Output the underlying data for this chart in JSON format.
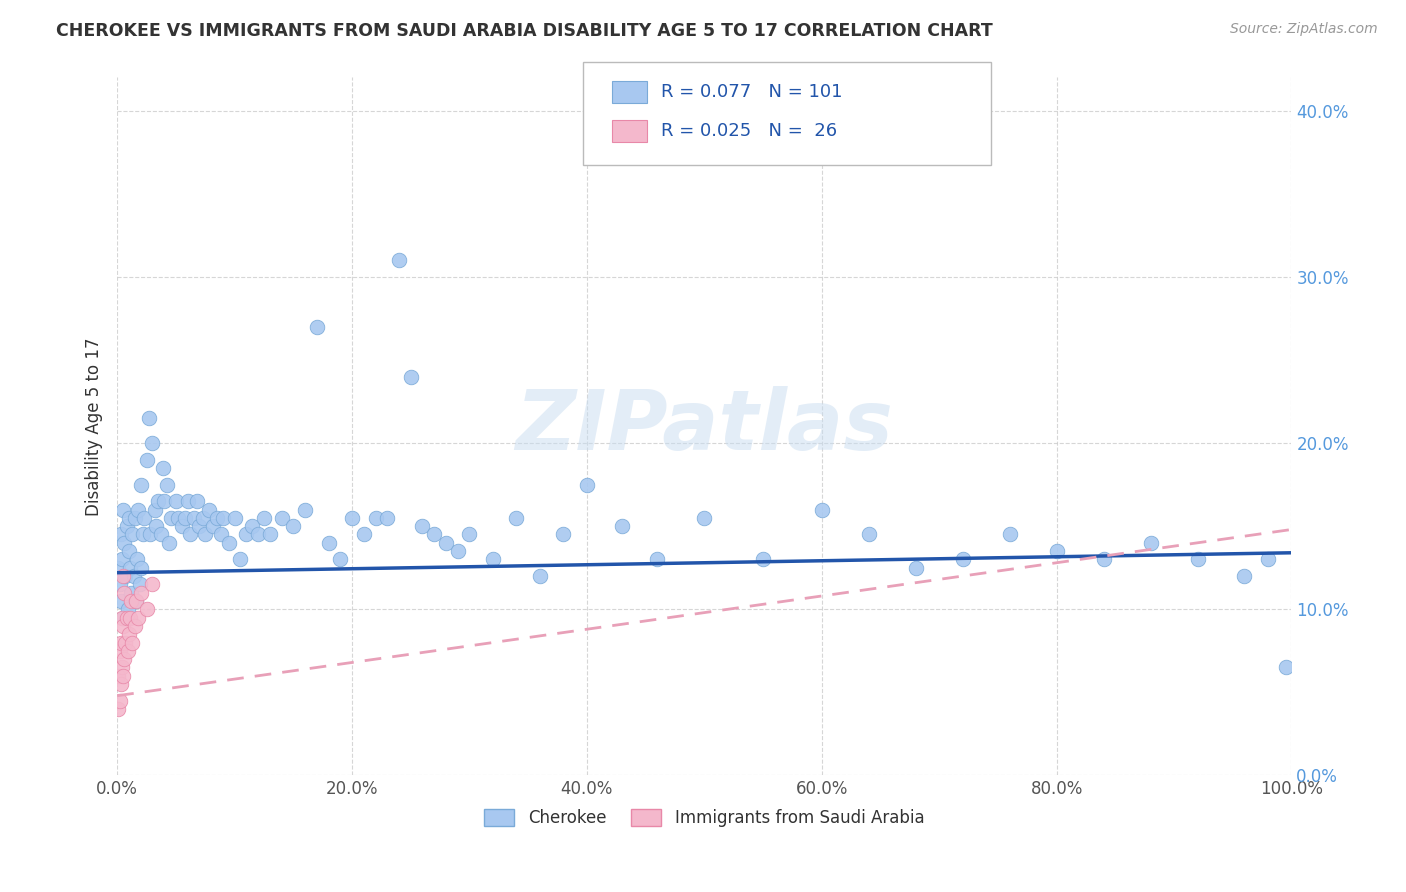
{
  "title": "CHEROKEE VS IMMIGRANTS FROM SAUDI ARABIA DISABILITY AGE 5 TO 17 CORRELATION CHART",
  "source": "Source: ZipAtlas.com",
  "ylabel": "Disability Age 5 to 17",
  "xlim": [
    0.0,
    1.0
  ],
  "ylim": [
    0.0,
    0.42
  ],
  "xticks": [
    0.0,
    0.2,
    0.4,
    0.6,
    0.8,
    1.0
  ],
  "xticklabels": [
    "0.0%",
    "20.0%",
    "40.0%",
    "60.0%",
    "80.0%",
    "100.0%"
  ],
  "yticks": [
    0.0,
    0.1,
    0.2,
    0.3,
    0.4
  ],
  "yticklabels": [
    "0.0%",
    "10.0%",
    "20.0%",
    "30.0%",
    "40.0%"
  ],
  "cherokee_color": "#A8C8F0",
  "saudi_color": "#F4B8CC",
  "cherokee_edge": "#7AAAD8",
  "saudi_edge": "#E888A8",
  "trend_cherokee_color": "#2255AA",
  "trend_saudi_color": "#E8A0B8",
  "legend_cherokee_label": "Cherokee",
  "legend_saudi_label": "Immigrants from Saudi Arabia",
  "R_cherokee": 0.077,
  "N_cherokee": 101,
  "R_saudi": 0.025,
  "N_saudi": 26,
  "watermark": "ZIPatlas",
  "tick_color_y": "#5599DD",
  "tick_color_x": "#555555",
  "cherokee_x": [
    0.001,
    0.002,
    0.003,
    0.003,
    0.004,
    0.005,
    0.005,
    0.006,
    0.007,
    0.008,
    0.009,
    0.01,
    0.01,
    0.011,
    0.012,
    0.013,
    0.014,
    0.015,
    0.016,
    0.017,
    0.018,
    0.019,
    0.02,
    0.02,
    0.022,
    0.023,
    0.025,
    0.027,
    0.028,
    0.03,
    0.032,
    0.033,
    0.035,
    0.037,
    0.039,
    0.04,
    0.042,
    0.044,
    0.046,
    0.05,
    0.052,
    0.055,
    0.058,
    0.06,
    0.062,
    0.065,
    0.068,
    0.07,
    0.073,
    0.075,
    0.078,
    0.082,
    0.085,
    0.088,
    0.09,
    0.095,
    0.1,
    0.105,
    0.11,
    0.115,
    0.12,
    0.125,
    0.13,
    0.14,
    0.15,
    0.16,
    0.17,
    0.18,
    0.19,
    0.2,
    0.21,
    0.22,
    0.23,
    0.24,
    0.25,
    0.26,
    0.27,
    0.28,
    0.29,
    0.3,
    0.32,
    0.34,
    0.36,
    0.38,
    0.4,
    0.43,
    0.46,
    0.5,
    0.55,
    0.6,
    0.64,
    0.68,
    0.72,
    0.76,
    0.8,
    0.84,
    0.88,
    0.92,
    0.96,
    0.98,
    0.995
  ],
  "cherokee_y": [
    0.125,
    0.115,
    0.105,
    0.145,
    0.13,
    0.095,
    0.16,
    0.14,
    0.12,
    0.15,
    0.1,
    0.135,
    0.155,
    0.125,
    0.11,
    0.145,
    0.12,
    0.155,
    0.105,
    0.13,
    0.16,
    0.115,
    0.125,
    0.175,
    0.145,
    0.155,
    0.19,
    0.215,
    0.145,
    0.2,
    0.16,
    0.15,
    0.165,
    0.145,
    0.185,
    0.165,
    0.175,
    0.14,
    0.155,
    0.165,
    0.155,
    0.15,
    0.155,
    0.165,
    0.145,
    0.155,
    0.165,
    0.15,
    0.155,
    0.145,
    0.16,
    0.15,
    0.155,
    0.145,
    0.155,
    0.14,
    0.155,
    0.13,
    0.145,
    0.15,
    0.145,
    0.155,
    0.145,
    0.155,
    0.15,
    0.16,
    0.27,
    0.14,
    0.13,
    0.155,
    0.145,
    0.155,
    0.155,
    0.31,
    0.24,
    0.15,
    0.145,
    0.14,
    0.135,
    0.145,
    0.13,
    0.155,
    0.12,
    0.145,
    0.175,
    0.15,
    0.13,
    0.155,
    0.13,
    0.16,
    0.145,
    0.125,
    0.13,
    0.145,
    0.135,
    0.13,
    0.14,
    0.13,
    0.12,
    0.13,
    0.065
  ],
  "saudi_x": [
    0.001,
    0.001,
    0.002,
    0.002,
    0.003,
    0.003,
    0.004,
    0.004,
    0.005,
    0.005,
    0.005,
    0.006,
    0.006,
    0.007,
    0.008,
    0.009,
    0.01,
    0.011,
    0.012,
    0.013,
    0.015,
    0.016,
    0.018,
    0.02,
    0.025,
    0.03
  ],
  "saudi_y": [
    0.04,
    0.06,
    0.045,
    0.075,
    0.055,
    0.08,
    0.065,
    0.095,
    0.06,
    0.09,
    0.12,
    0.07,
    0.11,
    0.08,
    0.095,
    0.075,
    0.085,
    0.095,
    0.105,
    0.08,
    0.09,
    0.105,
    0.095,
    0.11,
    0.1,
    0.115
  ],
  "cherokee_trend_x0": 0.0,
  "cherokee_trend_y0": 0.122,
  "cherokee_trend_x1": 1.0,
  "cherokee_trend_y1": 0.134,
  "saudi_trend_x0": 0.0,
  "saudi_trend_y0": 0.048,
  "saudi_trend_x1": 1.0,
  "saudi_trend_y1": 0.148
}
